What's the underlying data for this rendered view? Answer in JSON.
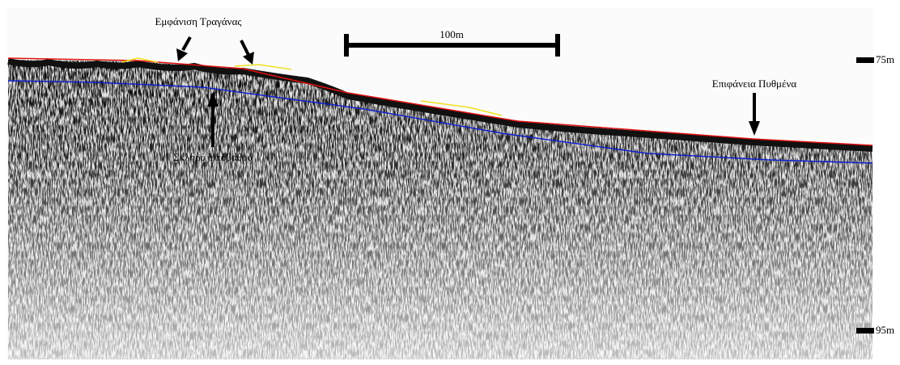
{
  "annotations": {
    "bottom_feature": "Εμφάνιση Τραγάνας",
    "seabed_surface": "Επιφάνεια Πυθμένα",
    "hard_substrate": "Σκληρό Υπόβαθρο"
  },
  "scale_bar": {
    "label": "100m"
  },
  "depth_marks": [
    "75m",
    "95m"
  ]
}
